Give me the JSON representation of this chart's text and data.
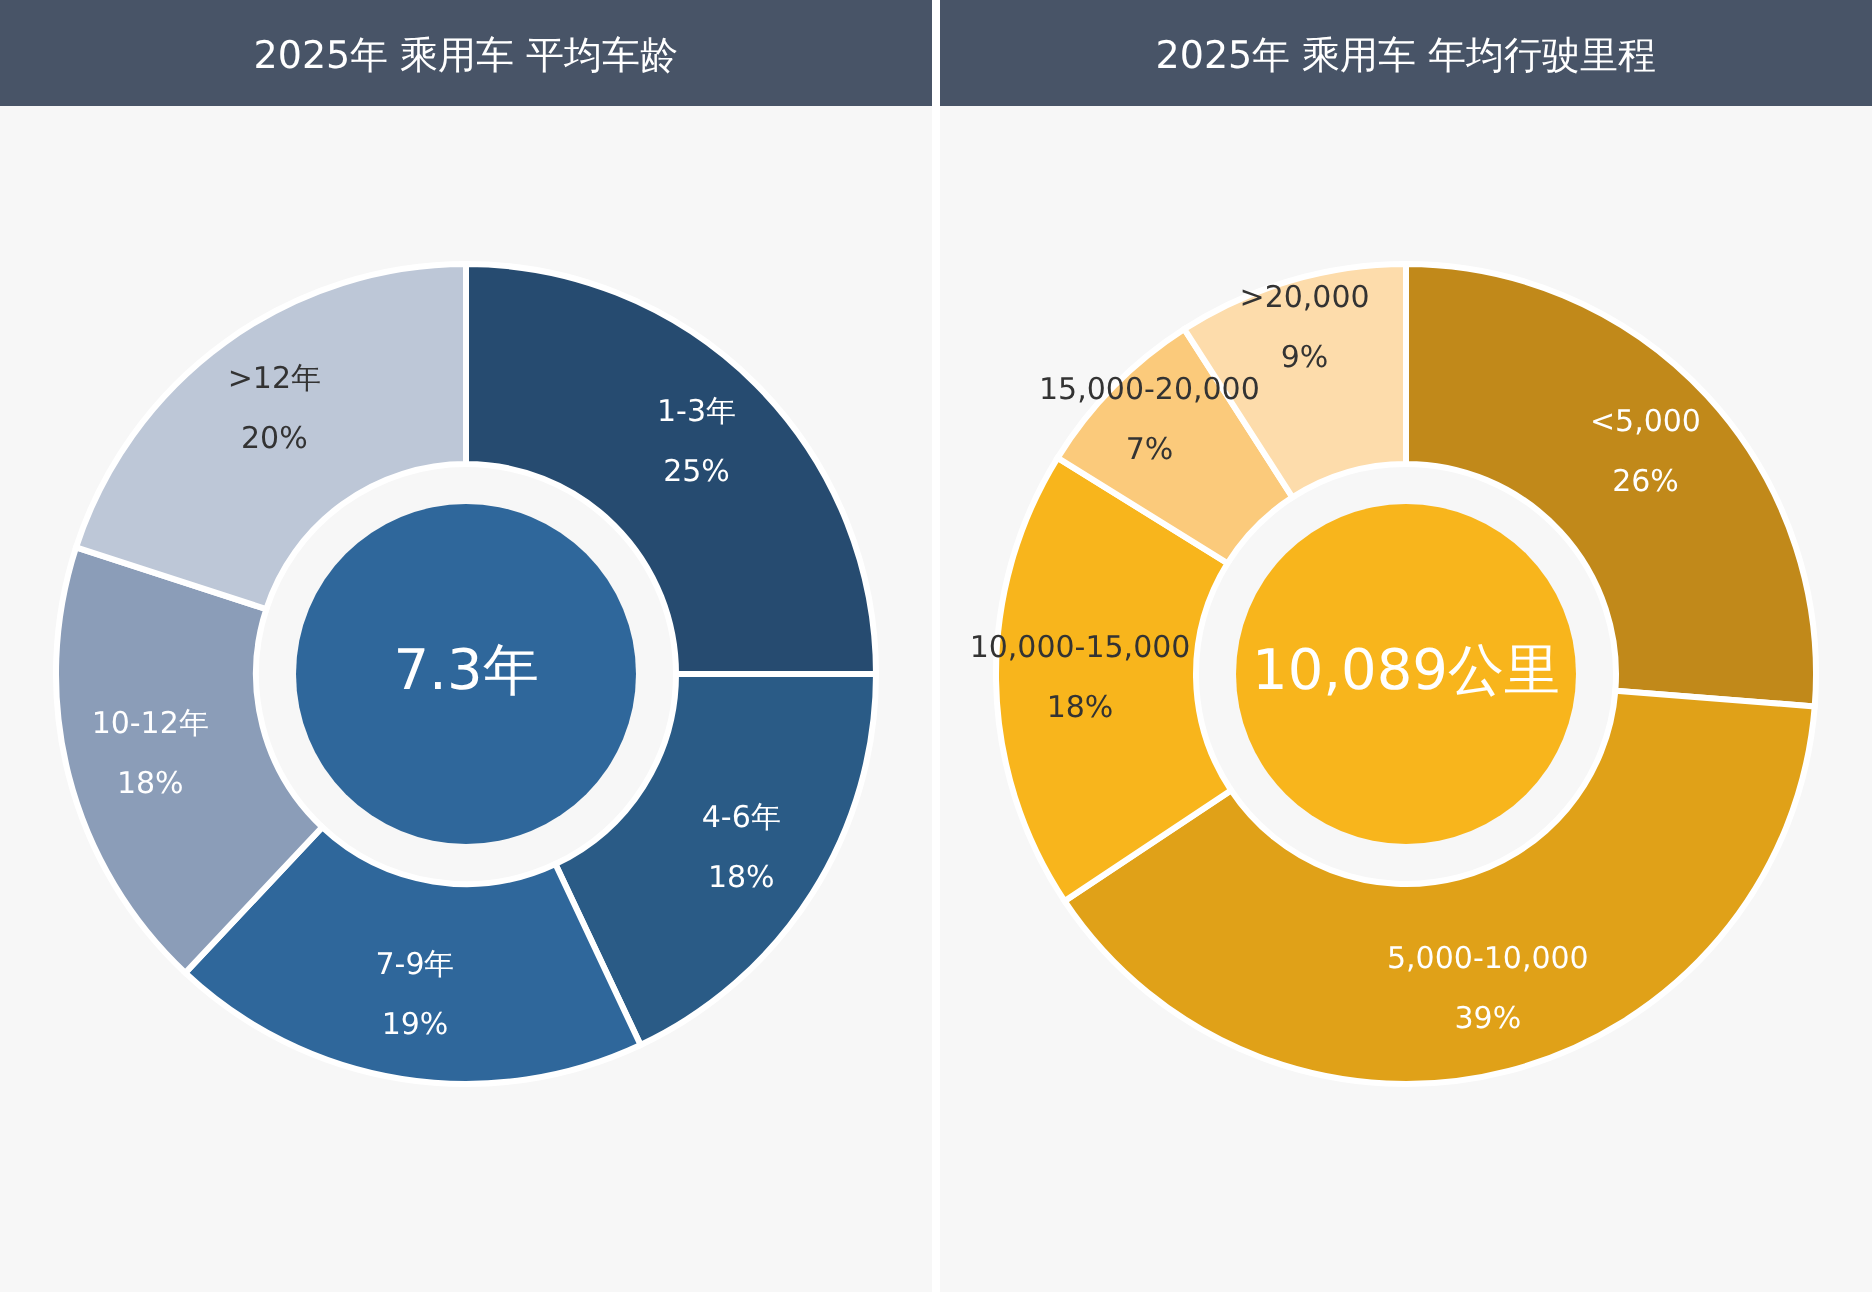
{
  "chart_data": [
    {
      "type": "donut",
      "title": "2025年 乘用车 平均车龄",
      "categories": [
        "1-3年",
        "4-6年",
        "7-9年",
        "10-12年",
        ">12年"
      ],
      "values": [
        25,
        18,
        19,
        18,
        20
      ],
      "value_labels": [
        "25%",
        "18%",
        "19%",
        "18%",
        "20%"
      ],
      "colors": [
        "#264b70",
        "#2a5b86",
        "#2f679b",
        "#8b9db8",
        "#bdc7d7"
      ],
      "annotations": [
        "7.3年"
      ]
    },
    {
      "type": "donut",
      "title": "2025年 乘用车 年均行驶里程",
      "categories": [
        "<5,000",
        "5,000-10,000",
        "10,000-15,000",
        "15,000-20,000",
        ">20,000"
      ],
      "values": [
        26,
        39,
        18,
        7,
        9
      ],
      "value_labels": [
        "26%",
        "39%",
        "18%",
        "7%",
        "9%"
      ],
      "colors": [
        "#c1891a",
        "#e0a118",
        "#f8b51c",
        "#fbca7b",
        "#fddcab"
      ],
      "annotations": [
        "10,089公里"
      ]
    }
  ]
}
